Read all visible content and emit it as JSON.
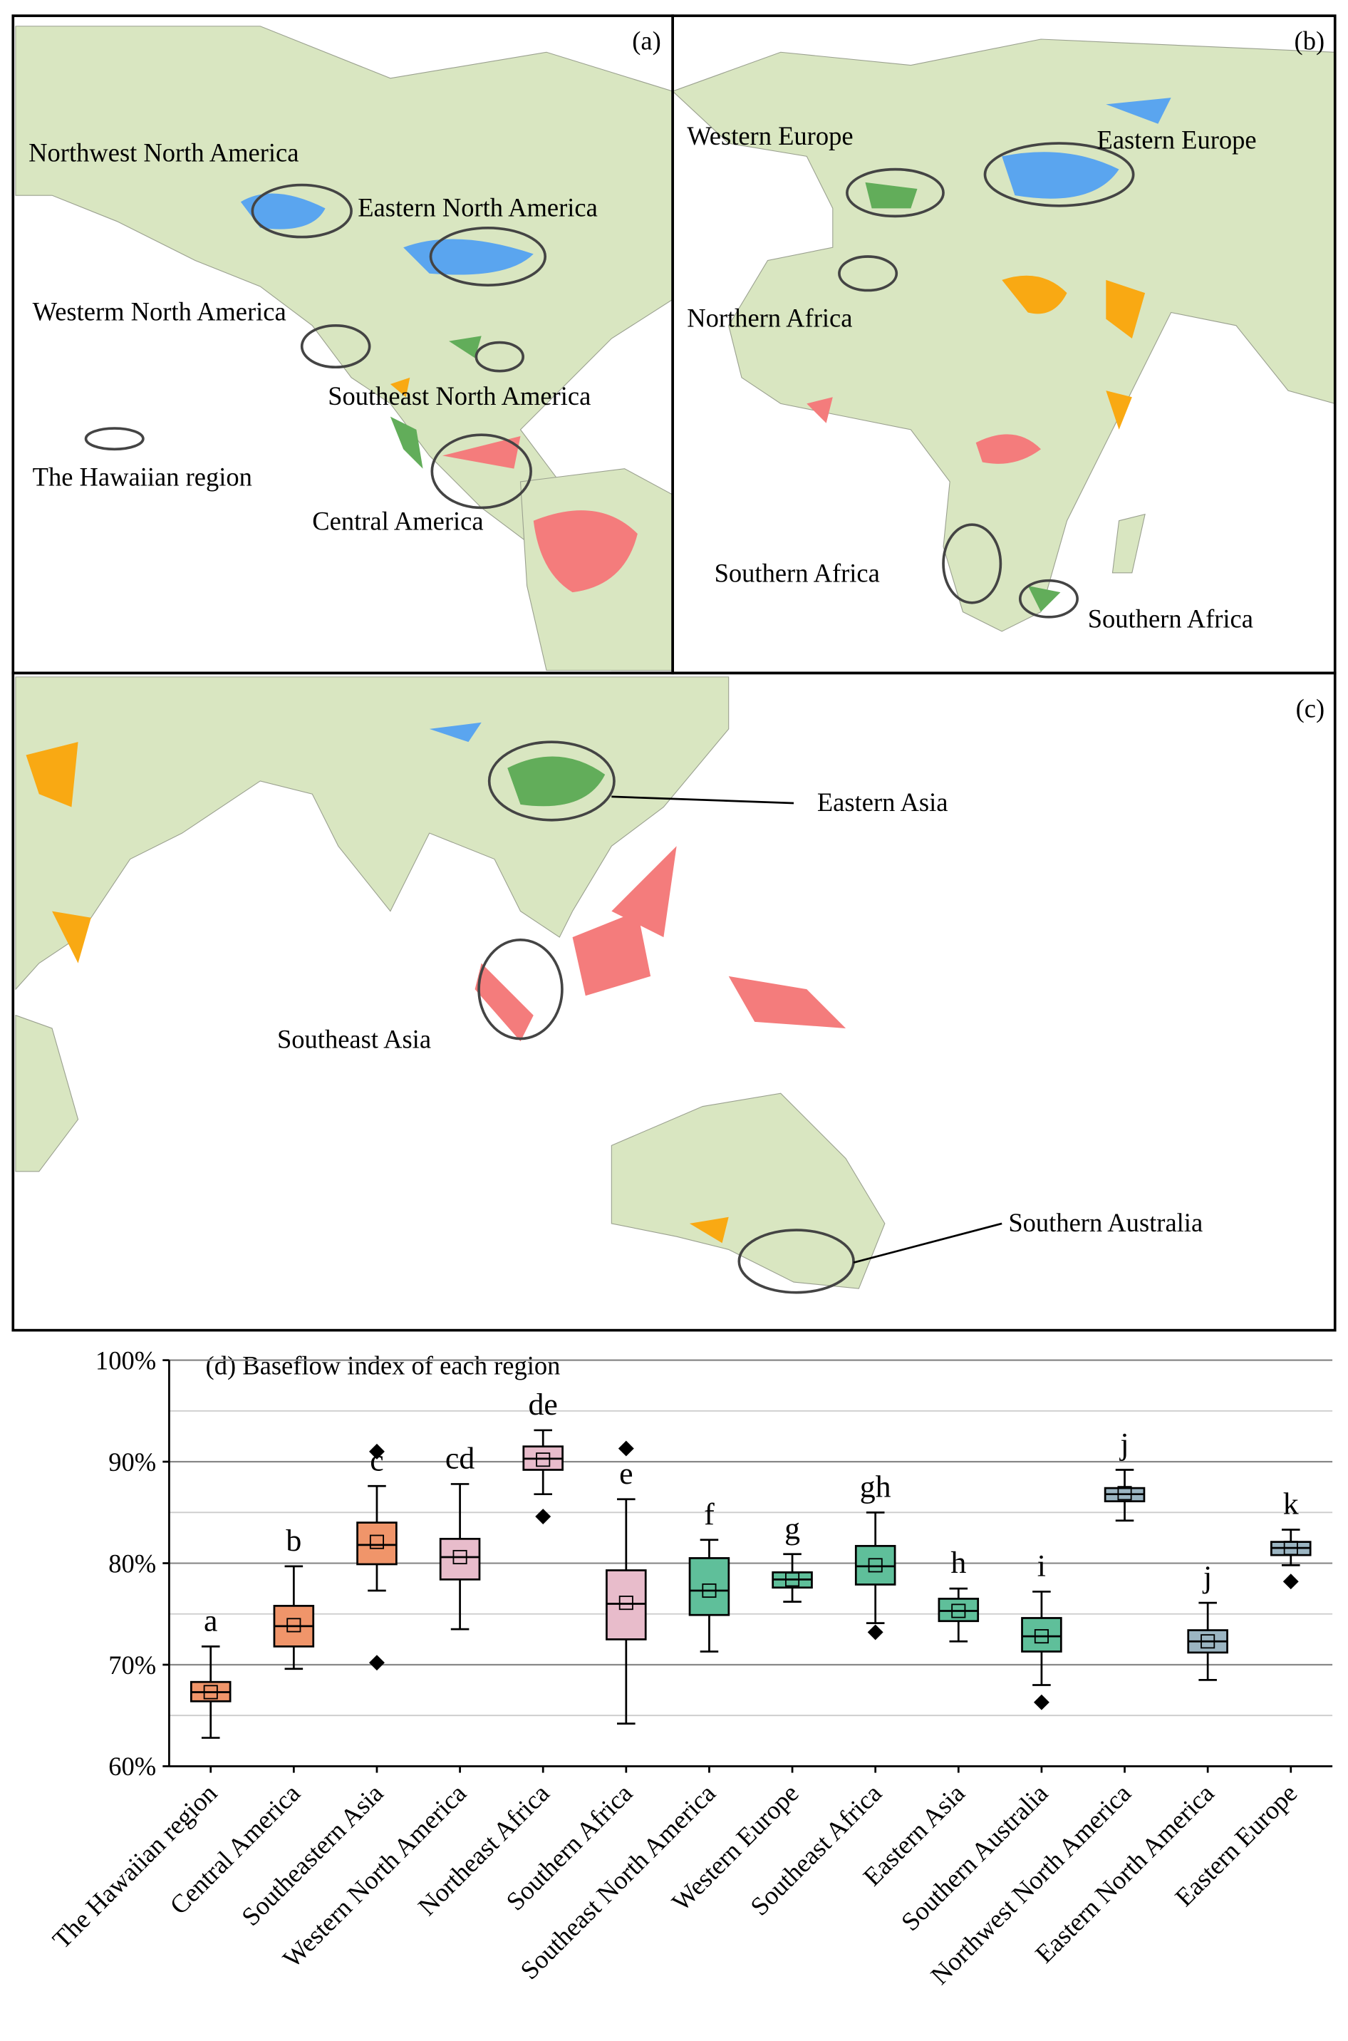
{
  "maps": {
    "panel_a": {
      "tag": "(a)",
      "labels": [
        "Northwest North America",
        "Eastern North America",
        "Westerm North America",
        "Southeast North America",
        "The Hawaiian region",
        "Central America"
      ]
    },
    "panel_b": {
      "tag": "(b)",
      "labels": [
        "Western Europe",
        "Eastern Europe",
        "Northern Africa",
        "Southern Africa",
        "Southern Africa"
      ]
    },
    "panel_c": {
      "tag": "(c)",
      "labels": [
        "Eastern Asia",
        "Southeast Asia",
        "Southern Australia"
      ]
    }
  },
  "chart_data": {
    "type": "box",
    "title": "(d) Baseflow index of each region",
    "ylim": [
      60,
      100
    ],
    "yticks": [
      {
        "value": 60,
        "label": "60%"
      },
      {
        "value": 70,
        "label": "70%"
      },
      {
        "value": 80,
        "label": "80%"
      },
      {
        "value": 90,
        "label": "90%"
      },
      {
        "value": 100,
        "label": "100%"
      }
    ],
    "yminor": [
      65,
      75,
      85,
      95
    ],
    "grid": true,
    "categories": [
      "The Hawaiian region",
      "Central America",
      "Southeastern Asia",
      "Western North America",
      "Northeast Africa",
      "Southern Africa",
      "Southeast North America",
      "Western Europe",
      "Southeast Africa",
      "Eastern Asia",
      "Southern Australia",
      "Northwest North America",
      "Eastern North America",
      "Eastern Europe"
    ],
    "boxes": [
      {
        "color": "#f0956a",
        "whisker_low": 62.8,
        "q1": 66.4,
        "median": 67.3,
        "q3": 68.3,
        "whisker_high": 71.8,
        "mean": 67.3,
        "outliers": [],
        "letter": "a"
      },
      {
        "color": "#f0956a",
        "whisker_low": 69.6,
        "q1": 71.8,
        "median": 73.8,
        "q3": 75.8,
        "whisker_high": 79.7,
        "mean": 73.9,
        "outliers": [],
        "letter": "b"
      },
      {
        "color": "#f0956a",
        "whisker_low": 77.3,
        "q1": 79.9,
        "median": 81.8,
        "q3": 84.0,
        "whisker_high": 87.6,
        "mean": 82.1,
        "outliers": [
          91.0,
          70.2
        ],
        "letter": "c"
      },
      {
        "color": "#e8bccb",
        "whisker_low": 73.5,
        "q1": 78.4,
        "median": 80.6,
        "q3": 82.4,
        "whisker_high": 87.8,
        "mean": 80.6,
        "outliers": [],
        "letter": "cd"
      },
      {
        "color": "#e8bccb",
        "whisker_low": 86.8,
        "q1": 89.2,
        "median": 90.3,
        "q3": 91.5,
        "whisker_high": 93.1,
        "mean": 90.2,
        "outliers": [
          84.6
        ],
        "letter": "de"
      },
      {
        "color": "#e8bccb",
        "whisker_low": 64.2,
        "q1": 72.5,
        "median": 76.0,
        "q3": 79.3,
        "whisker_high": 86.3,
        "mean": 76.1,
        "outliers": [
          91.3
        ],
        "letter": "e"
      },
      {
        "color": "#5fbf9a",
        "whisker_low": 71.3,
        "q1": 74.9,
        "median": 77.3,
        "q3": 80.5,
        "whisker_high": 82.3,
        "mean": 77.3,
        "outliers": [],
        "letter": "f"
      },
      {
        "color": "#5fbf9a",
        "whisker_low": 76.2,
        "q1": 77.6,
        "median": 78.4,
        "q3": 79.1,
        "whisker_high": 80.9,
        "mean": 78.4,
        "outliers": [],
        "letter": "g"
      },
      {
        "color": "#5fbf9a",
        "whisker_low": 74.1,
        "q1": 77.9,
        "median": 79.7,
        "q3": 81.7,
        "whisker_high": 85.0,
        "mean": 79.8,
        "outliers": [
          73.2
        ],
        "letter": "gh"
      },
      {
        "color": "#5fbf9a",
        "whisker_low": 72.3,
        "q1": 74.3,
        "median": 75.3,
        "q3": 76.5,
        "whisker_high": 77.5,
        "mean": 75.3,
        "outliers": [],
        "letter": "h"
      },
      {
        "color": "#5fbf9a",
        "whisker_low": 68.0,
        "q1": 71.3,
        "median": 72.8,
        "q3": 74.6,
        "whisker_high": 77.2,
        "mean": 72.8,
        "outliers": [
          66.3
        ],
        "letter": "i"
      },
      {
        "color": "#9bb5c2",
        "whisker_low": 84.2,
        "q1": 86.1,
        "median": 86.8,
        "q3": 87.4,
        "whisker_high": 89.2,
        "mean": 86.9,
        "outliers": [],
        "letter": "j"
      },
      {
        "color": "#9bb5c2",
        "whisker_low": 68.5,
        "q1": 71.2,
        "median": 72.3,
        "q3": 73.4,
        "whisker_high": 76.1,
        "mean": 72.3,
        "outliers": [],
        "letter": "j"
      },
      {
        "color": "#9bb5c2",
        "whisker_low": 79.8,
        "q1": 80.8,
        "median": 81.5,
        "q3": 82.1,
        "whisker_high": 83.3,
        "mean": 81.5,
        "outliers": [
          78.2
        ],
        "letter": "k"
      }
    ]
  }
}
